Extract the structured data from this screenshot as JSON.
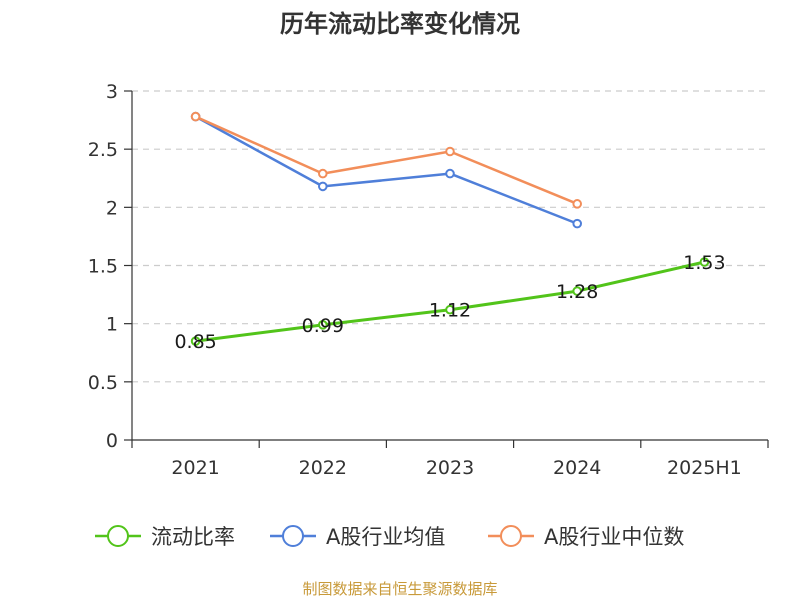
{
  "chart_data": {
    "type": "line",
    "title": "历年流动比率变化情况",
    "categories": [
      "2021",
      "2022",
      "2023",
      "2024",
      "2025H1"
    ],
    "yticks": [
      "0",
      "0.5",
      "1",
      "1.5",
      "2",
      "2.5",
      "3"
    ],
    "ylim": [
      0,
      3
    ],
    "grid": true,
    "legend_position": "bottom",
    "series": [
      {
        "name": "流动比率",
        "color": "#52c41a",
        "values": [
          0.85,
          0.99,
          1.12,
          1.28,
          1.53
        ],
        "labels": [
          "0.85",
          "0.99",
          "1.12",
          "1.28",
          "1.53"
        ]
      },
      {
        "name": "A股行业均值",
        "color": "#4f7fd9",
        "values": [
          2.78,
          2.18,
          2.29,
          1.86,
          null
        ]
      },
      {
        "name": "A股行业中位数",
        "color": "#f28e5a",
        "values": [
          2.78,
          2.29,
          2.48,
          2.03,
          null
        ]
      }
    ]
  },
  "footer": {
    "source": "制图数据来自恒生聚源数据库"
  }
}
